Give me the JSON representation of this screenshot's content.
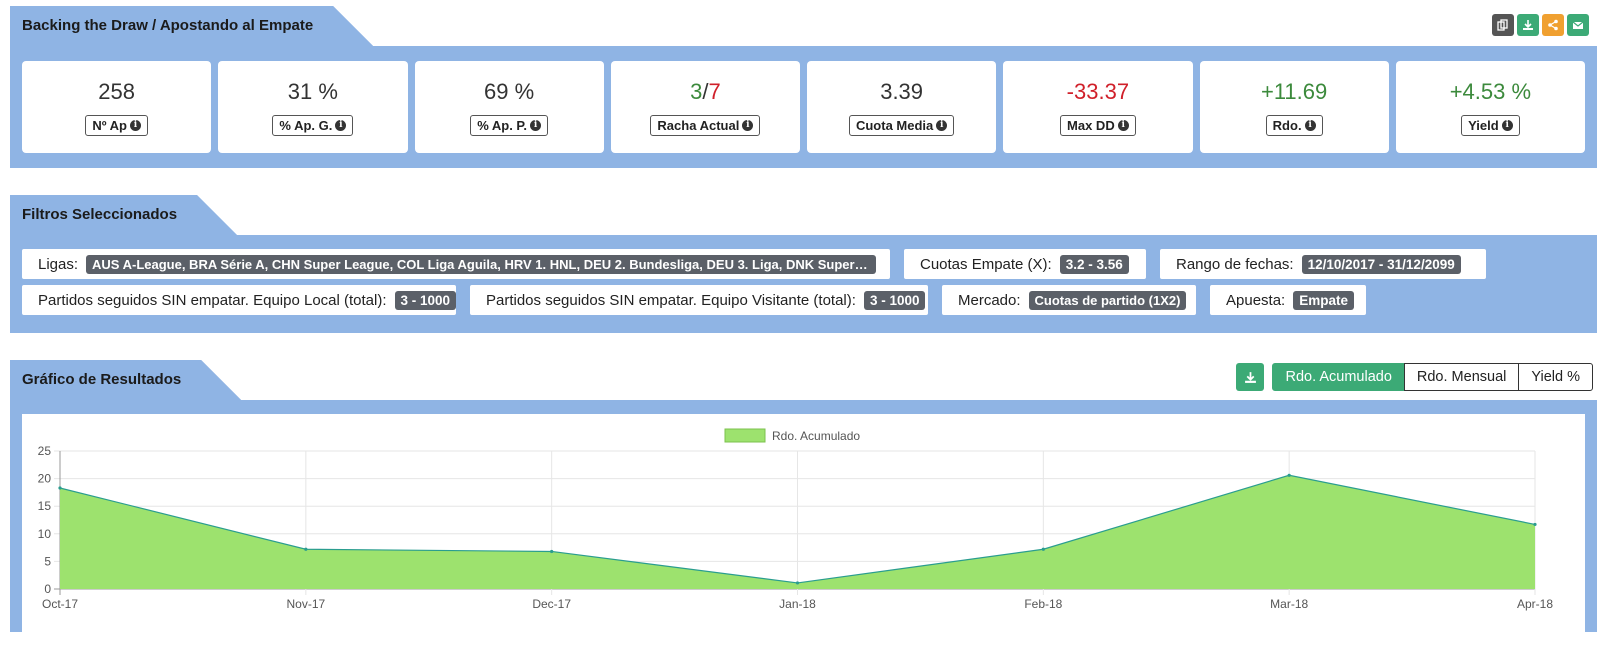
{
  "stats_section": {
    "title": "Backing the Draw / Apostando al Empate",
    "icons": [
      "copy-icon",
      "download-icon",
      "share-icon",
      "email-icon"
    ],
    "cards": [
      {
        "value": "258",
        "label": "Nº Ap"
      },
      {
        "value": "31 %",
        "label": "% Ap. G."
      },
      {
        "value": "69 %",
        "label": "% Ap. P."
      },
      {
        "value_win": "3",
        "value_sep": "/",
        "value_loss": "7",
        "label": "Racha Actual"
      },
      {
        "value": "3.39",
        "label": "Cuota Media"
      },
      {
        "value": "-33.37",
        "label": "Max DD"
      },
      {
        "value": "+11.69",
        "label": "Rdo."
      },
      {
        "value": "+4.53 %",
        "label": "Yield"
      }
    ]
  },
  "filters_section": {
    "title": "Filtros Seleccionados",
    "ligas_label": "Ligas:",
    "ligas_value": "AUS A-League, BRA Série A, CHN Super League, COL Liga Aguila, HRV 1. HNL, DEU 2. Bundesliga, DEU 3. Liga, DNK Superliga ...",
    "cuotas_label": "Cuotas Empate (X):",
    "cuotas_value": "3.2 - 3.56",
    "rango_label": "Rango de fechas:",
    "rango_value": "12/10/2017 - 31/12/2099",
    "local_label": "Partidos seguidos SIN empatar. Equipo Local (total):",
    "local_value": "3 - 1000",
    "visit_label": "Partidos seguidos SIN empatar. Equipo Visitante (total):",
    "visit_value": "3 - 1000",
    "mercado_label": "Mercado:",
    "mercado_value": "Cuotas de partido (1X2)",
    "apuesta_label": "Apuesta:",
    "apuesta_value": "Empate"
  },
  "results_section": {
    "title": "Gráfico de Resultados",
    "tabs": [
      "Rdo. Acumulado",
      "Rdo. Mensual",
      "Yield %"
    ],
    "active_tab": "Rdo. Acumulado"
  },
  "colors": {
    "panel_blue": "#8fb4e4",
    "area_green": "#9de26e",
    "line_teal": "#2a9d8f",
    "accent_green": "#3caa76",
    "positive": "#3c8a3c",
    "negative": "#d0202a"
  },
  "chart_data": {
    "type": "area",
    "x": [
      "Oct-17",
      "Nov-17",
      "Dec-17",
      "Jan-18",
      "Feb-18",
      "Mar-18",
      "Apr-18"
    ],
    "series": [
      {
        "name": "Rdo. Acumulado",
        "values": [
          18.3,
          7.2,
          6.8,
          1.1,
          7.2,
          20.6,
          11.7
        ]
      }
    ],
    "yticks": [
      0,
      5,
      10,
      15,
      20,
      25
    ],
    "ylim": [
      0,
      25
    ],
    "legend": "top-center",
    "grid": true
  }
}
